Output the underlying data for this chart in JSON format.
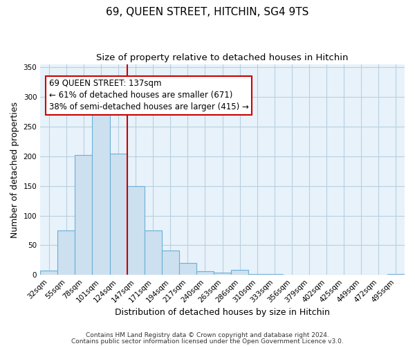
{
  "title": "69, QUEEN STREET, HITCHIN, SG4 9TS",
  "subtitle": "Size of property relative to detached houses in Hitchin",
  "xlabel": "Distribution of detached houses by size in Hitchin",
  "ylabel": "Number of detached properties",
  "bar_labels": [
    "32sqm",
    "55sqm",
    "78sqm",
    "101sqm",
    "124sqm",
    "147sqm",
    "171sqm",
    "194sqm",
    "217sqm",
    "240sqm",
    "263sqm",
    "286sqm",
    "310sqm",
    "333sqm",
    "356sqm",
    "379sqm",
    "402sqm",
    "425sqm",
    "449sqm",
    "472sqm",
    "495sqm"
  ],
  "bar_values": [
    7,
    75,
    202,
    272,
    205,
    150,
    75,
    41,
    20,
    6,
    4,
    8,
    1,
    1,
    0,
    0,
    0,
    0,
    0,
    0,
    2
  ],
  "bar_color": "#cce0f0",
  "bar_edge_color": "#6aaed6",
  "vline_x": 4.5,
  "vline_color": "#cc0000",
  "annotation_text": "69 QUEEN STREET: 137sqm\n← 61% of detached houses are smaller (671)\n38% of semi-detached houses are larger (415) →",
  "ylim": [
    0,
    355
  ],
  "yticks": [
    0,
    50,
    100,
    150,
    200,
    250,
    300,
    350
  ],
  "footer_line1": "Contains HM Land Registry data © Crown copyright and database right 2024.",
  "footer_line2": "Contains public sector information licensed under the Open Government Licence v3.0.",
  "title_fontsize": 11,
  "subtitle_fontsize": 9.5,
  "axis_label_fontsize": 9,
  "tick_fontsize": 7.5,
  "annotation_fontsize": 8.5,
  "footer_fontsize": 6.5,
  "background_color": "#ffffff",
  "plot_bg_color": "#e8f2fa",
  "grid_color": "#b8cfe0"
}
